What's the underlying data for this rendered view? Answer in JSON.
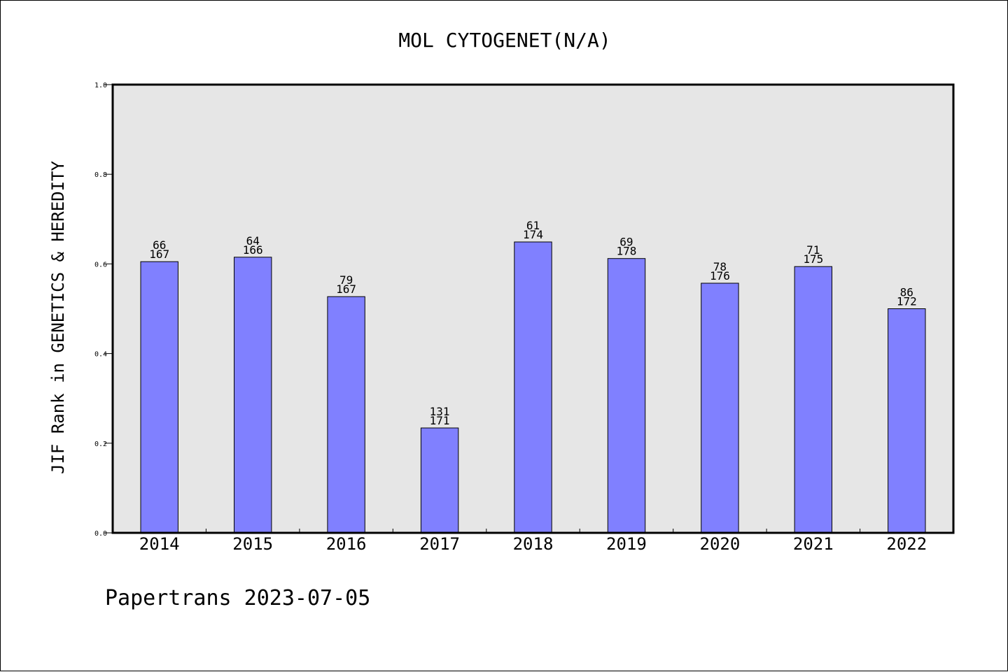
{
  "chart_data": {
    "type": "bar",
    "title": "MOL CYTOGENET(N/A)",
    "xlabel": "",
    "ylabel": "JIF Rank in GENETICS & HEREDITY",
    "ylim": [
      0.0,
      1.0
    ],
    "yticks": [
      "0.0",
      "0.2",
      "0.4",
      "0.6",
      "0.8",
      "1.0"
    ],
    "categories": [
      "2014",
      "2015",
      "2016",
      "2017",
      "2018",
      "2019",
      "2020",
      "2021",
      "2022"
    ],
    "values": [
      0.605,
      0.615,
      0.527,
      0.234,
      0.649,
      0.612,
      0.557,
      0.594,
      0.5
    ],
    "rank_labels": [
      "66",
      "64",
      "79",
      "131",
      "61",
      "69",
      "78",
      "71",
      "86"
    ],
    "total_labels": [
      "167",
      "166",
      "167",
      "171",
      "174",
      "178",
      "176",
      "175",
      "172"
    ],
    "bar_color": "#8080ff",
    "plot_background": "#e6e6e6",
    "grid": false,
    "legend": "none"
  },
  "footer": {
    "text": "Papertrans 2023-07-05"
  }
}
